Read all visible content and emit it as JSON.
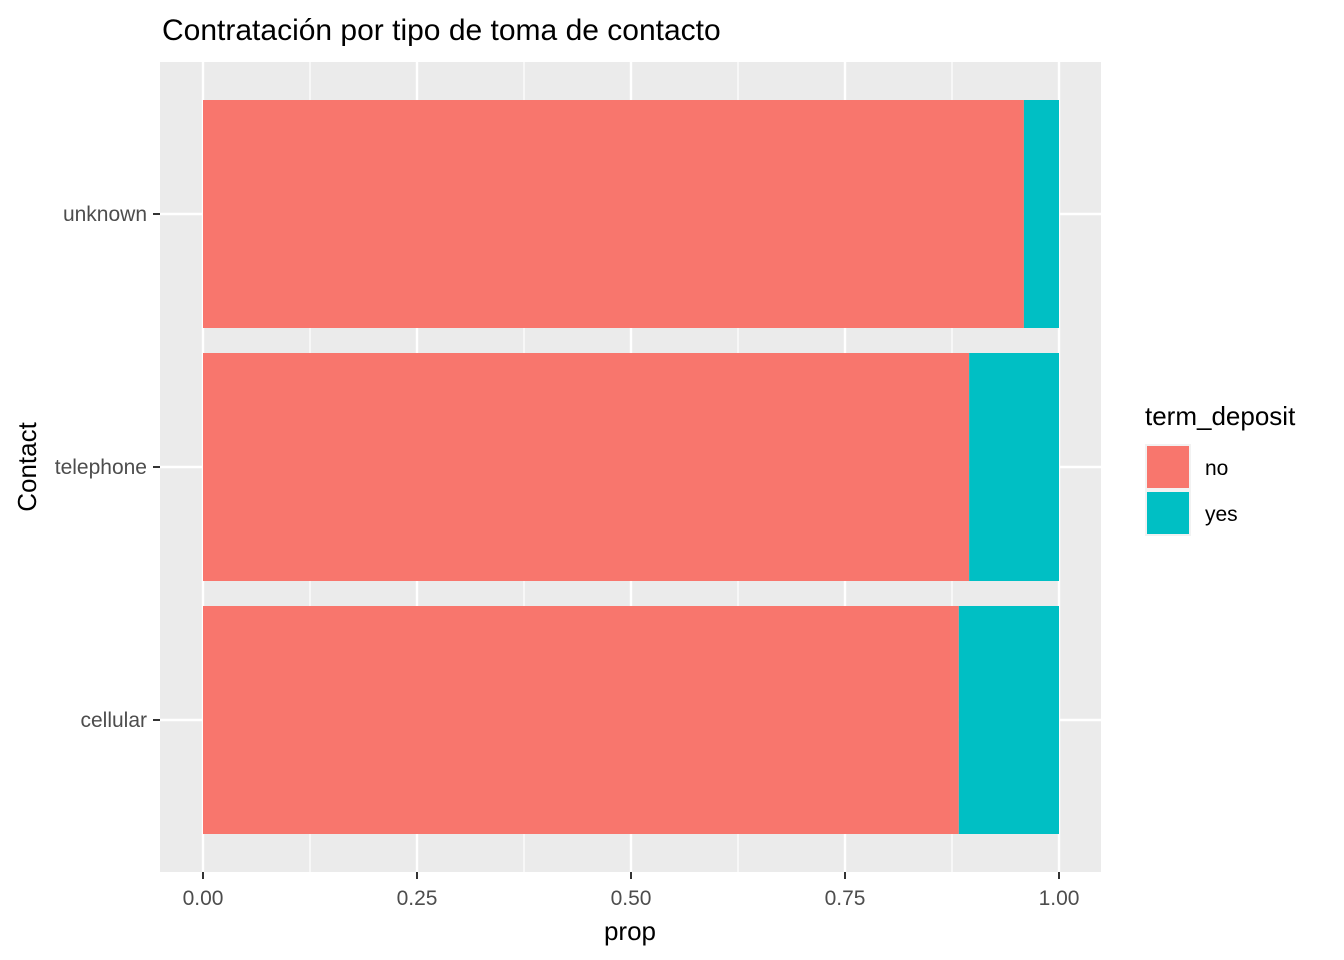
{
  "chart_data": {
    "type": "bar",
    "orientation": "horizontal",
    "stacked": true,
    "title": "Contratación por tipo de toma de contacto",
    "xlabel": "prop",
    "ylabel": "Contact",
    "categories": [
      "cellular",
      "telephone",
      "unknown"
    ],
    "series": [
      {
        "name": "no",
        "values": [
          0.883,
          0.895,
          0.959
        ],
        "color": "#F8766D"
      },
      {
        "name": "yes",
        "values": [
          0.117,
          0.105,
          0.041
        ],
        "color": "#00BFC4"
      }
    ],
    "xlim": [
      0,
      1
    ],
    "x_ticks": [
      0,
      0.25,
      0.5,
      0.75,
      1
    ],
    "x_tick_labels": [
      "0.00",
      "0.25",
      "0.50",
      "0.75",
      "1.00"
    ],
    "grid": true,
    "panel_background": "#EBEBEB",
    "legend": {
      "title": "term_deposit",
      "position": "right",
      "entries": [
        "no",
        "yes"
      ]
    }
  }
}
